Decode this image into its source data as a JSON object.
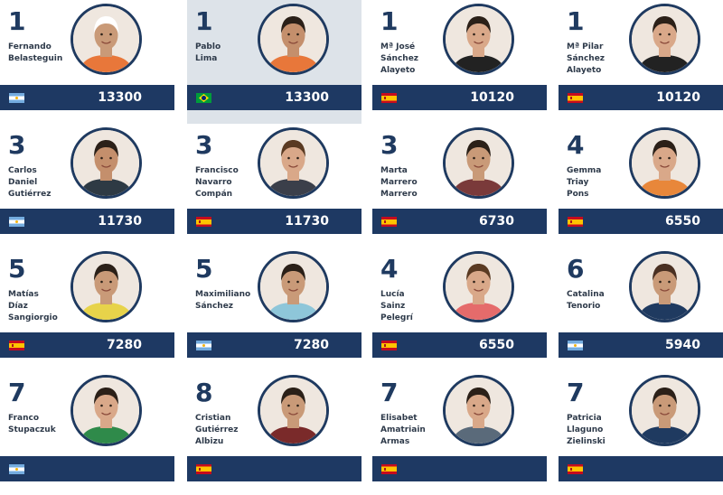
{
  "players": [
    {
      "rank": "1",
      "name": [
        "Fernando",
        "Belasteguin"
      ],
      "country": "argentina",
      "points": "13300",
      "highlighted": false,
      "shirt": "#e8773a",
      "hair": "#ffffff",
      "skin": "#c99a78"
    },
    {
      "rank": "1",
      "name": [
        "Pablo",
        "Lima"
      ],
      "country": "brazil",
      "points": "13300",
      "highlighted": true,
      "shirt": "#e8773a",
      "hair": "#2b2018",
      "skin": "#c48f6c"
    },
    {
      "rank": "1",
      "name": [
        "Mª José",
        "Sánchez",
        "Alayeto"
      ],
      "country": "spain",
      "points": "10120",
      "highlighted": false,
      "shirt": "#222222",
      "hair": "#2b2018",
      "skin": "#d9a889"
    },
    {
      "rank": "1",
      "name": [
        "Mª Pilar",
        "Sánchez",
        "Alayeto"
      ],
      "country": "spain",
      "points": "10120",
      "highlighted": false,
      "shirt": "#222222",
      "hair": "#2b2018",
      "skin": "#d9a889"
    },
    {
      "rank": "3",
      "name": [
        "Carlos",
        "Daniel",
        "Gutiérrez"
      ],
      "country": "argentina",
      "points": "11730",
      "highlighted": false,
      "shirt": "#2e3a44",
      "hair": "#2b2018",
      "skin": "#c48f6c"
    },
    {
      "rank": "3",
      "name": [
        "Francisco",
        "Navarro",
        "Compán"
      ],
      "country": "spain",
      "points": "11730",
      "highlighted": false,
      "shirt": "#3b3f4a",
      "hair": "#5a3a22",
      "skin": "#d9a889"
    },
    {
      "rank": "3",
      "name": [
        "Marta",
        "Marrero",
        "Marrero"
      ],
      "country": "spain",
      "points": "6730",
      "highlighted": false,
      "shirt": "#7a3a3a",
      "hair": "#2b2018",
      "skin": "#c99a78"
    },
    {
      "rank": "4",
      "name": [
        "Gemma",
        "Triay",
        "Pons"
      ],
      "country": "spain",
      "points": "6550",
      "highlighted": false,
      "shirt": "#e8873a",
      "hair": "#2b2018",
      "skin": "#d9a889"
    },
    {
      "rank": "5",
      "name": [
        "Matías",
        "Díaz",
        "Sangiorgio"
      ],
      "country": "spain",
      "points": "7280",
      "highlighted": false,
      "shirt": "#e7d34a",
      "hair": "#2b2018",
      "skin": "#c99a78"
    },
    {
      "rank": "5",
      "name": [
        "Maximiliano",
        "Sánchez"
      ],
      "country": "argentina",
      "points": "7280",
      "highlighted": false,
      "shirt": "#8ec6d9",
      "hair": "#2b2018",
      "skin": "#c99a78"
    },
    {
      "rank": "4",
      "name": [
        "Lucía",
        "Sainz",
        "Pelegrí"
      ],
      "country": "spain",
      "points": "6550",
      "highlighted": false,
      "shirt": "#e56b6b",
      "hair": "#5a3a22",
      "skin": "#d9a889"
    },
    {
      "rank": "6",
      "name": [
        "Catalina",
        "Tenorio"
      ],
      "country": "argentina",
      "points": "5940",
      "highlighted": false,
      "shirt": "#1f3a60",
      "hair": "#4a3022",
      "skin": "#c99a78"
    },
    {
      "rank": "7",
      "name": [
        "Franco",
        "Stupaczuk"
      ],
      "country": "argentina",
      "points": "",
      "highlighted": false,
      "shirt": "#2f8a4a",
      "hair": "#2b2018",
      "skin": "#d9a889"
    },
    {
      "rank": "8",
      "name": [
        "Cristian",
        "Gutiérrez",
        "Albizu"
      ],
      "country": "spain",
      "points": "",
      "highlighted": false,
      "shirt": "#7a2a2a",
      "hair": "#2b2018",
      "skin": "#c99a78"
    },
    {
      "rank": "7",
      "name": [
        "Elisabet",
        "Amatriain",
        "Armas"
      ],
      "country": "spain",
      "points": "",
      "highlighted": false,
      "shirt": "#5a6a7a",
      "hair": "#2b2018",
      "skin": "#d9a889"
    },
    {
      "rank": "7",
      "name": [
        "Patricia",
        "Llaguno",
        "Zielinski"
      ],
      "country": "spain",
      "points": "",
      "highlighted": false,
      "shirt": "#1f3a60",
      "hair": "#2b2018",
      "skin": "#c99a78"
    }
  ]
}
